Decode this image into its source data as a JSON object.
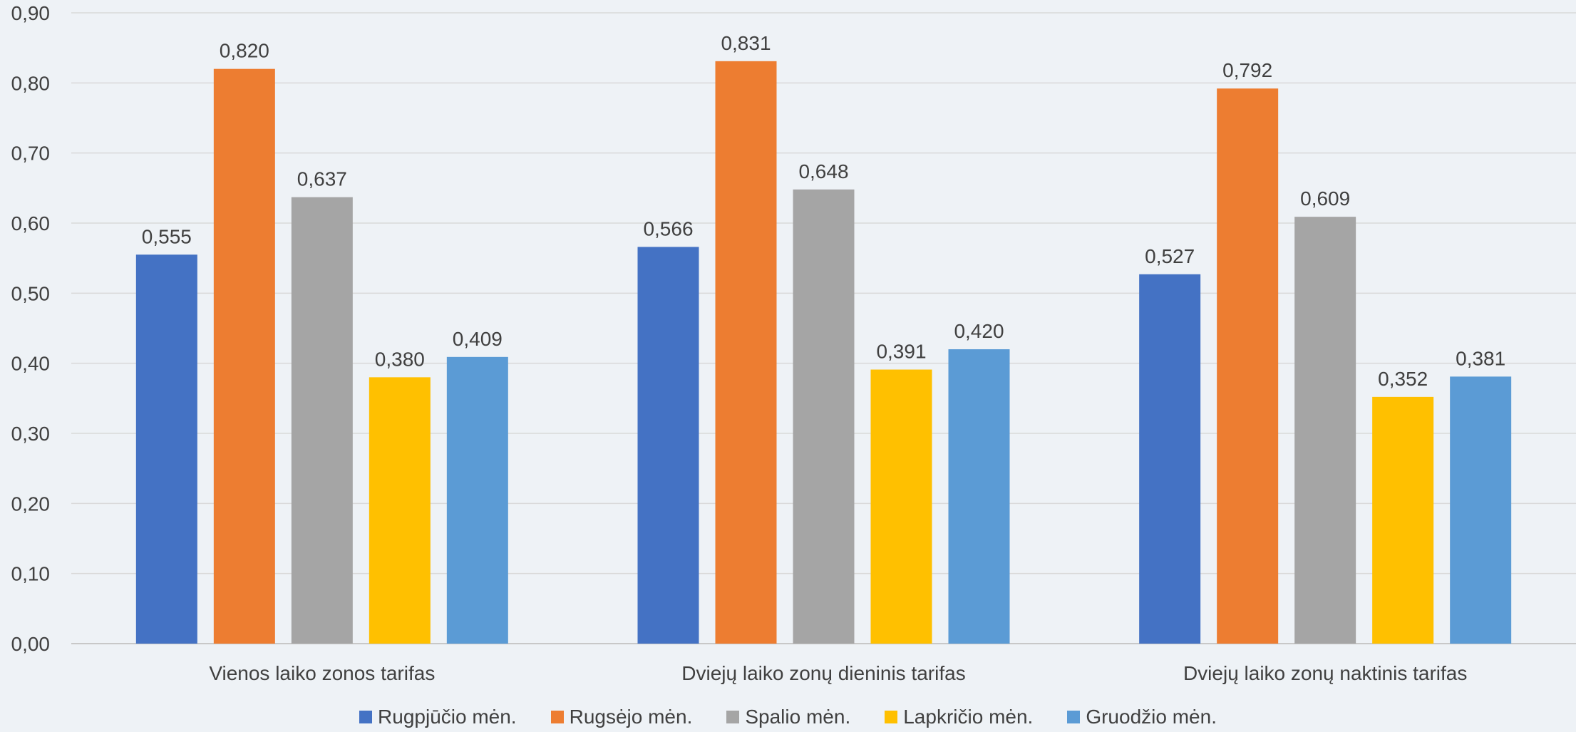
{
  "chart_data": {
    "type": "bar",
    "categories": [
      "Vienos laiko zonos tarifas",
      "Dviejų laiko zonų dieninis tarifas",
      "Dviejų laiko zonų naktinis tarifas"
    ],
    "series": [
      {
        "name": "Rugpjūčio mėn.",
        "color": "#4472c4",
        "values": [
          0.555,
          0.566,
          0.527
        ],
        "labels": [
          "0,555",
          "0,566",
          "0,527"
        ]
      },
      {
        "name": "Rugsėjo mėn.",
        "color": "#ed7d31",
        "values": [
          0.82,
          0.831,
          0.792
        ],
        "labels": [
          "0,820",
          "0,831",
          "0,792"
        ]
      },
      {
        "name": "Spalio mėn.",
        "color": "#a5a5a5",
        "values": [
          0.637,
          0.648,
          0.609
        ],
        "labels": [
          "0,637",
          "0,648",
          "0,609"
        ]
      },
      {
        "name": "Lapkričio mėn.",
        "color": "#ffc000",
        "values": [
          0.38,
          0.391,
          0.352
        ],
        "labels": [
          "0,380",
          "0,391",
          "0,352"
        ]
      },
      {
        "name": "Gruodžio mėn.",
        "color": "#5b9bd5",
        "values": [
          0.409,
          0.42,
          0.381
        ],
        "labels": [
          "0,409",
          "0,420",
          "0,381"
        ]
      }
    ],
    "yticks": [
      "0,00",
      "0,10",
      "0,20",
      "0,30",
      "0,40",
      "0,50",
      "0,60",
      "0,70",
      "0,80",
      "0,90"
    ],
    "ylim": [
      0,
      0.9
    ],
    "title": "",
    "xlabel": "",
    "ylabel": "",
    "grid": true,
    "legend_position": "bottom"
  }
}
